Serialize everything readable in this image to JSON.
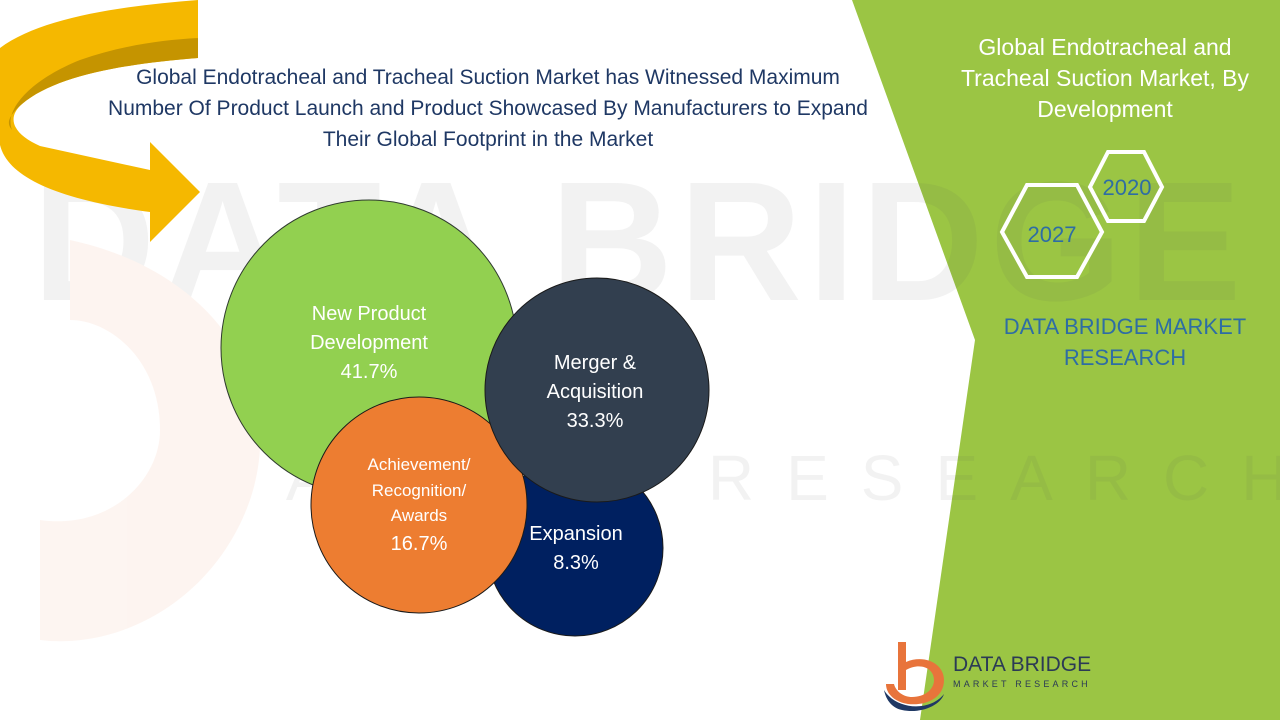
{
  "headline": {
    "line1": "Global Endotracheal  and Tracheal Suction Market has Witnessed Maximum",
    "line2": "Number Of Product Launch and Product Showcased By Manufacturers to Expand",
    "line3": "Their Global Footprint in the Market"
  },
  "side_panel": {
    "title_line1": "Global Endotracheal and",
    "title_line2": "Tracheal Suction Market, By",
    "title_line3": "Development",
    "year_start": "2020",
    "year_end": "2027",
    "brand_line1": "DATA BRIDGE MARKET",
    "brand_line2": "RESEARCH"
  },
  "logo": {
    "name": "DATA BRIDGE",
    "tagline": "MARKET RESEARCH"
  },
  "watermark": {
    "line1": "DATA BRIDGE",
    "line2": "MARKET RESEARCH"
  },
  "colors": {
    "panel_green": "#9bc544",
    "bubble_green": "#92d050",
    "bubble_slate": "#323f4f",
    "bubble_orange": "#ed7d31",
    "bubble_navy": "#002060",
    "arrow_gold": "#f5b800",
    "headline_text": "#1f3864",
    "brand_blue": "#2e6da4"
  },
  "chart_data": {
    "type": "bubble",
    "unit": "%",
    "segments": [
      {
        "label_lines": [
          "New Product",
          "Development"
        ],
        "value": 41.7,
        "display": "41.7%",
        "color": "#92d050"
      },
      {
        "label_lines": [
          "Merger &",
          "Acquisition"
        ],
        "value": 33.3,
        "display": "33.3%",
        "color": "#323f4f"
      },
      {
        "label_lines": [
          "Achievement/",
          "Recognition/",
          "Awards"
        ],
        "value": 16.7,
        "display": "16.7%",
        "color": "#ed7d31"
      },
      {
        "label_lines": [
          "Expansion"
        ],
        "value": 8.3,
        "display": "8.3%",
        "color": "#002060"
      }
    ]
  }
}
